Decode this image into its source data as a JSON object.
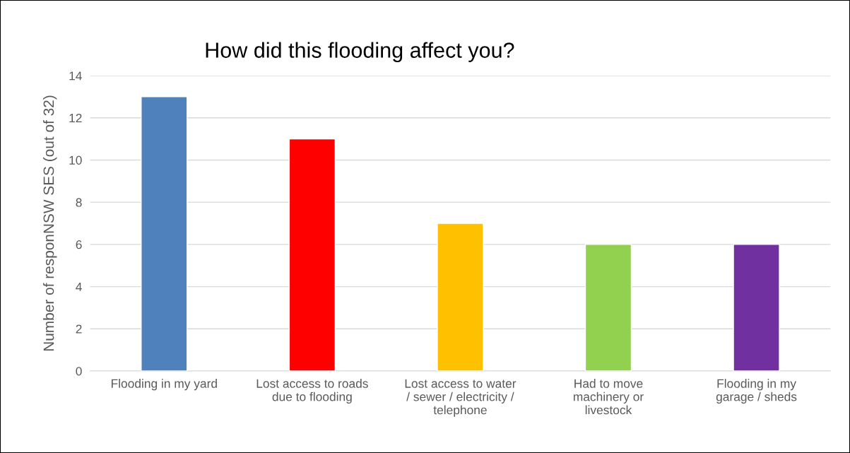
{
  "chart_data": {
    "type": "bar",
    "title": "How did this flooding affect you?",
    "ylabel": "Number of responNSW SES (out of 32)",
    "categories": [
      "Flooding in my yard",
      "Lost access to roads\ndue to flooding",
      "Lost access to water\n/ sewer / electricity /\ntelephone",
      "Had to move\nmachinery or\nlivestock",
      "Flooding in my\ngarage / sheds"
    ],
    "values": [
      13,
      11,
      7,
      6,
      6
    ],
    "colors": [
      "#4f81bd",
      "#ff0000",
      "#ffc000",
      "#92d050",
      "#7030a0"
    ],
    "ylim": [
      0,
      14
    ],
    "yticks": [
      0,
      2,
      4,
      6,
      8,
      10,
      12,
      14
    ],
    "grid": "y",
    "legend": false
  }
}
